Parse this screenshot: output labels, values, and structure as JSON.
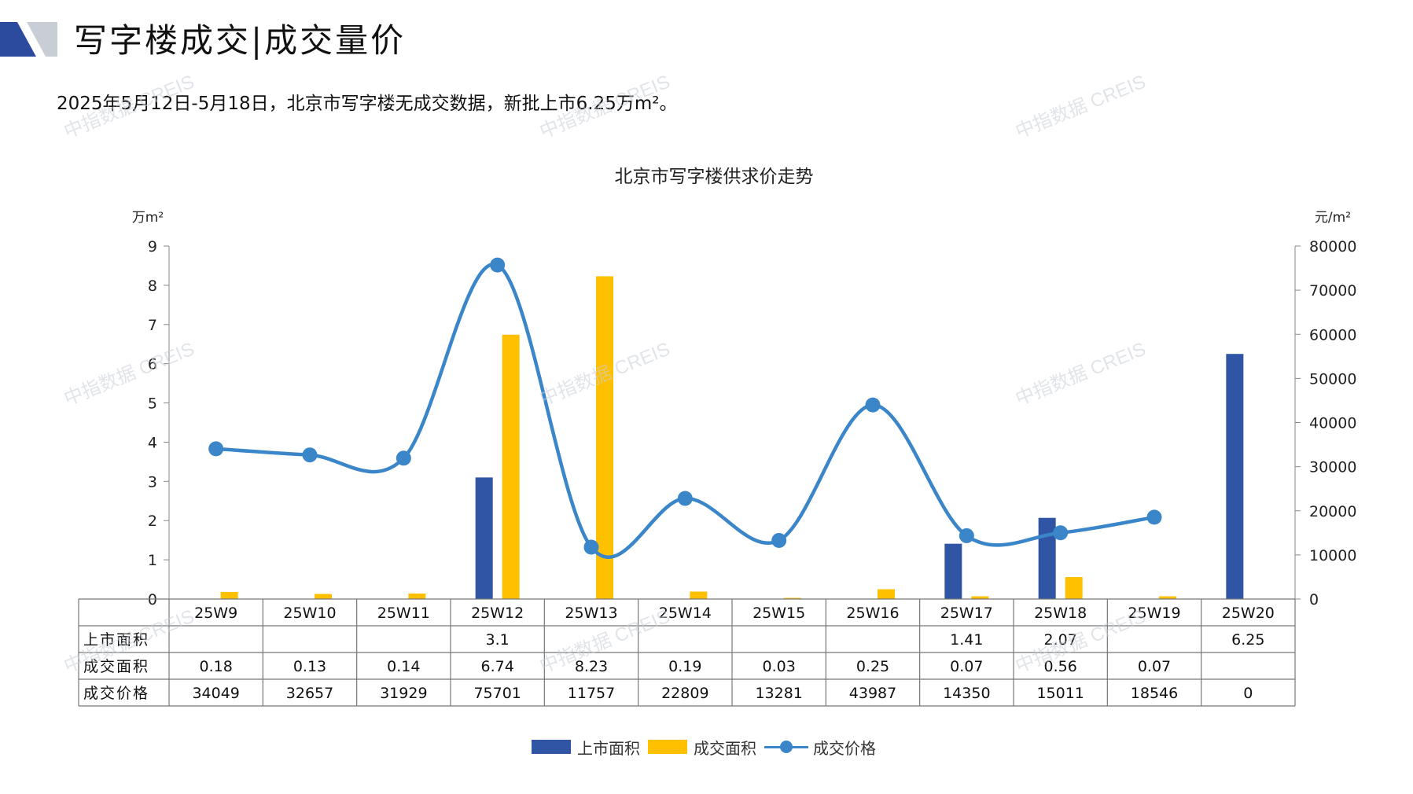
{
  "header": {
    "title": "写字楼成交|成交量价",
    "summary": "2025年5月12日-5月18日，北京市写字楼无成交数据，新批上市6.25万m²。"
  },
  "watermark_text": "中指数据 CREIS",
  "colors": {
    "listed": "#2f55a4",
    "deal_area": "#ffc000",
    "deal_price": "#3a86c8",
    "logo_dark": "#2d4b9e",
    "logo_light": "#c9ced6"
  },
  "chart_data": {
    "type": "bar",
    "title": "北京市写字楼供求价走势",
    "categories": [
      "25W9",
      "25W10",
      "25W11",
      "25W12",
      "25W13",
      "25W14",
      "25W15",
      "25W16",
      "25W17",
      "25W18",
      "25W19",
      "25W20"
    ],
    "y_left": {
      "unit": "万m²",
      "ticks": [
        "0",
        "1",
        "2",
        "3",
        "4",
        "5",
        "6",
        "7",
        "8",
        "9"
      ],
      "range": [
        0,
        9
      ]
    },
    "y_right": {
      "unit": "元/m²",
      "ticks": [
        "0",
        "10000",
        "20000",
        "30000",
        "40000",
        "50000",
        "60000",
        "70000",
        "80000"
      ],
      "range": [
        0,
        80000
      ]
    },
    "series": [
      {
        "name": "上市面积",
        "type": "bar",
        "axis": "left",
        "values": [
          null,
          null,
          null,
          3.1,
          null,
          null,
          null,
          null,
          1.41,
          2.07,
          null,
          6.25
        ],
        "labels": [
          "",
          "",
          "",
          "3.1",
          "",
          "",
          "",
          "",
          "1.41",
          "2.07",
          "",
          "6.25"
        ]
      },
      {
        "name": "成交面积",
        "type": "bar",
        "axis": "left",
        "values": [
          0.18,
          0.13,
          0.14,
          6.74,
          8.23,
          0.19,
          0.03,
          0.25,
          0.07,
          0.56,
          0.07,
          null
        ],
        "labels": [
          "0.18",
          "0.13",
          "0.14",
          "6.74",
          "8.23",
          "0.19",
          "0.03",
          "0.25",
          "0.07",
          "0.56",
          "0.07",
          ""
        ]
      },
      {
        "name": "成交价格",
        "type": "line",
        "axis": "right",
        "smooth": true,
        "values": [
          34049,
          32657,
          31929,
          75701,
          11757,
          22809,
          13281,
          43987,
          14350,
          15011,
          18546,
          0
        ],
        "labels": [
          "34049",
          "32657",
          "31929",
          "75701",
          "11757",
          "22809",
          "13281",
          "43987",
          "14350",
          "15011",
          "18546",
          "0"
        ]
      }
    ],
    "data_table": true,
    "grid": false,
    "legend_position": "bottom"
  }
}
